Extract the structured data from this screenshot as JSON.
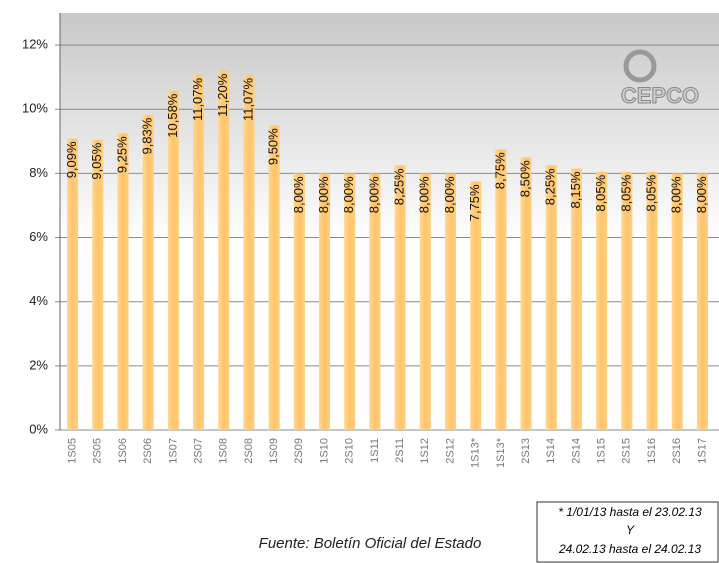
{
  "chart_data": {
    "type": "bar",
    "categories": [
      "1S05",
      "2S05",
      "1S06",
      "2S06",
      "1S07",
      "2S07",
      "1S08",
      "2S08",
      "1S09",
      "2S09",
      "1S10",
      "2S10",
      "1S11",
      "2S11",
      "1S12",
      "2S12",
      "1S13*",
      "1S13*",
      "2S13",
      "1S14",
      "2S14",
      "1S15",
      "2S15",
      "1S16",
      "2S16",
      "1S17"
    ],
    "values": [
      9.09,
      9.05,
      9.25,
      9.83,
      10.58,
      11.07,
      11.2,
      11.07,
      9.5,
      8.0,
      8.0,
      8.0,
      8.0,
      8.25,
      8.0,
      8.0,
      7.75,
      8.75,
      8.5,
      8.25,
      8.15,
      8.05,
      8.05,
      8.05,
      8.0,
      8.0
    ],
    "value_labels": [
      "9,09%",
      "9,05%",
      "9,25%",
      "9,83%",
      "10,58%",
      "11,07%",
      "11,20%",
      "11,07%",
      "9,50%",
      "8,00%",
      "8,00%",
      "8,00%",
      "8,00%",
      "8,25%",
      "8,00%",
      "8,00%",
      "7,75%",
      "8,75%",
      "8,50%",
      "8,25%",
      "8,15%",
      "8,05%",
      "8,05%",
      "8,05%",
      "8,00%",
      "8,00%"
    ],
    "color": "#ffc46a",
    "ylim": [
      0,
      13
    ],
    "yticks": [
      {
        "value": 0,
        "label": "0%"
      },
      {
        "value": 2,
        "label": "2%"
      },
      {
        "value": 4,
        "label": "4%"
      },
      {
        "value": 6,
        "label": "6%"
      },
      {
        "value": 8,
        "label": "8%"
      },
      {
        "value": 10,
        "label": "10%"
      },
      {
        "value": 12,
        "label": "12%"
      }
    ],
    "grid": true,
    "logo": "CEPCO",
    "source": "Fuente: Boletín Oficial del Estado",
    "note": [
      "* 1/01/13 hasta el 23.02.13",
      "Y",
      "24.02.13 hasta el 24.02.13"
    ]
  }
}
